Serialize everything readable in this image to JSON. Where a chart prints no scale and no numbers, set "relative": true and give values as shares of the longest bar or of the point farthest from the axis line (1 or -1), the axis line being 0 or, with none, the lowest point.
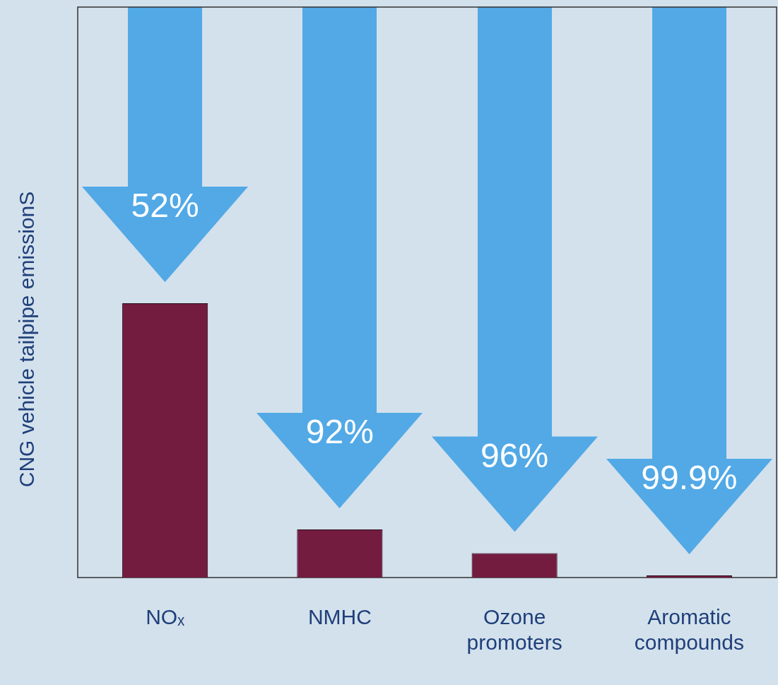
{
  "chart_data": {
    "type": "bar",
    "ylabel": "CNG vehicle tailpipe emissionS",
    "relative": true,
    "categories": [
      "NOₓ",
      "NMHC",
      "Ozone promoters",
      "Aromatic compounds"
    ],
    "values": [
      1,
      0.175,
      0.089,
      0.008
    ],
    "color": "#731c40",
    "grid": false,
    "legend": false,
    "annotations": [
      "52%",
      "92%",
      "96%",
      "99.9%"
    ]
  }
}
